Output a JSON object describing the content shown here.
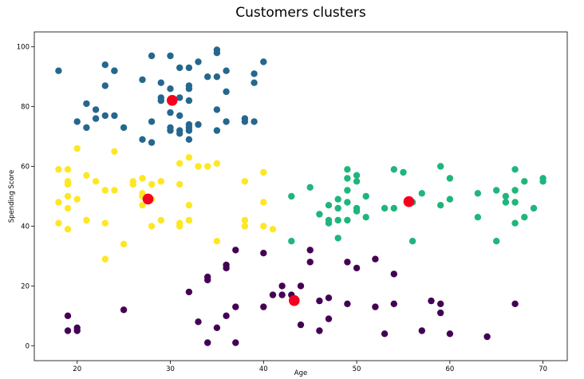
{
  "chart_data": {
    "type": "scatter",
    "title": "Customers clusters",
    "xlabel": "Age",
    "ylabel": "Spending Score",
    "xlim": [
      15.4,
      72.6
    ],
    "ylim": [
      -5,
      105
    ],
    "xticks": [
      20,
      30,
      40,
      50,
      60,
      70
    ],
    "yticks": [
      0,
      20,
      40,
      60,
      80,
      100
    ],
    "grid": false,
    "legend": "none",
    "series": [
      {
        "color": "#25678e",
        "points": [
          [
            18,
            92
          ],
          [
            23,
            94
          ],
          [
            24,
            92
          ],
          [
            28,
            97
          ],
          [
            30,
            97
          ],
          [
            35,
            99
          ],
          [
            35,
            98
          ],
          [
            33,
            95
          ],
          [
            40,
            95
          ],
          [
            36,
            92
          ],
          [
            39,
            91
          ],
          [
            31,
            93
          ],
          [
            32,
            93
          ],
          [
            34,
            90
          ],
          [
            35,
            90
          ],
          [
            27,
            89
          ],
          [
            39,
            88
          ],
          [
            23,
            87
          ],
          [
            29,
            88
          ],
          [
            30,
            86
          ],
          [
            32,
            87
          ],
          [
            32,
            86
          ],
          [
            36,
            85
          ],
          [
            24,
            92
          ],
          [
            21,
            81
          ],
          [
            22,
            79
          ],
          [
            29,
            83
          ],
          [
            29,
            82
          ],
          [
            31,
            83
          ],
          [
            32,
            82
          ],
          [
            30,
            82
          ],
          [
            35,
            79
          ],
          [
            30,
            78
          ],
          [
            23,
            77
          ],
          [
            24,
            77
          ],
          [
            31,
            77
          ],
          [
            22,
            76
          ],
          [
            38,
            76
          ],
          [
            38,
            75
          ],
          [
            20,
            75
          ],
          [
            28,
            75
          ],
          [
            36,
            75
          ],
          [
            39,
            75
          ],
          [
            21,
            73
          ],
          [
            25,
            73
          ],
          [
            30,
            73
          ],
          [
            32,
            74
          ],
          [
            33,
            74
          ],
          [
            30,
            72
          ],
          [
            31,
            72
          ],
          [
            32,
            73
          ],
          [
            35,
            72
          ],
          [
            31,
            71
          ],
          [
            32,
            72
          ],
          [
            27,
            69
          ],
          [
            28,
            68
          ],
          [
            32,
            69
          ]
        ]
      },
      {
        "color": "#fde725",
        "points": [
          [
            20,
            66
          ],
          [
            24,
            65
          ],
          [
            32,
            63
          ],
          [
            31,
            61
          ],
          [
            33,
            60
          ],
          [
            34,
            60
          ],
          [
            35,
            61
          ],
          [
            18,
            59
          ],
          [
            19,
            59
          ],
          [
            27,
            56
          ],
          [
            40,
            58
          ],
          [
            21,
            57
          ],
          [
            19,
            55
          ],
          [
            26,
            55
          ],
          [
            22,
            55
          ],
          [
            28,
            54
          ],
          [
            29,
            55
          ],
          [
            38,
            55
          ],
          [
            19,
            54
          ],
          [
            26,
            54
          ],
          [
            31,
            54
          ],
          [
            23,
            52
          ],
          [
            24,
            52
          ],
          [
            27,
            51
          ],
          [
            27,
            50
          ],
          [
            19,
            50
          ],
          [
            20,
            49
          ],
          [
            28,
            49
          ],
          [
            18,
            48
          ],
          [
            32,
            47
          ],
          [
            27,
            47
          ],
          [
            40,
            48
          ],
          [
            19,
            46
          ],
          [
            29,
            42
          ],
          [
            32,
            42
          ],
          [
            21,
            42
          ],
          [
            38,
            42
          ],
          [
            18,
            41
          ],
          [
            23,
            41
          ],
          [
            31,
            41
          ],
          [
            31,
            40
          ],
          [
            28,
            40
          ],
          [
            38,
            40
          ],
          [
            40,
            40
          ],
          [
            41,
            39
          ],
          [
            19,
            39
          ],
          [
            35,
            35
          ],
          [
            25,
            34
          ],
          [
            23,
            29
          ]
        ]
      },
      {
        "color": "#1fb67c",
        "points": [
          [
            59,
            60
          ],
          [
            54,
            59
          ],
          [
            49,
            59
          ],
          [
            55,
            58
          ],
          [
            50,
            57
          ],
          [
            67,
            59
          ],
          [
            49,
            56
          ],
          [
            50,
            55
          ],
          [
            60,
            56
          ],
          [
            70,
            56
          ],
          [
            68,
            55
          ],
          [
            70,
            55
          ],
          [
            45,
            53
          ],
          [
            49,
            52
          ],
          [
            65,
            52
          ],
          [
            67,
            52
          ],
          [
            57,
            51
          ],
          [
            43,
            50
          ],
          [
            51,
            50
          ],
          [
            63,
            51
          ],
          [
            66,
            50
          ],
          [
            60,
            49
          ],
          [
            48,
            49
          ],
          [
            49,
            48
          ],
          [
            56,
            48
          ],
          [
            66,
            48
          ],
          [
            67,
            48
          ],
          [
            59,
            47
          ],
          [
            47,
            47
          ],
          [
            48,
            46
          ],
          [
            50,
            46
          ],
          [
            50,
            45
          ],
          [
            53,
            46
          ],
          [
            54,
            46
          ],
          [
            69,
            46
          ],
          [
            46,
            44
          ],
          [
            51,
            43
          ],
          [
            63,
            43
          ],
          [
            68,
            43
          ],
          [
            47,
            42
          ],
          [
            48,
            42
          ],
          [
            49,
            42
          ],
          [
            47,
            41
          ],
          [
            67,
            41
          ],
          [
            48,
            36
          ],
          [
            43,
            35
          ],
          [
            56,
            35
          ],
          [
            65,
            35
          ]
        ]
      },
      {
        "color": "#440154",
        "points": [
          [
            37,
            32
          ],
          [
            40,
            31
          ],
          [
            45,
            32
          ],
          [
            52,
            29
          ],
          [
            45,
            28
          ],
          [
            49,
            28
          ],
          [
            36,
            27
          ],
          [
            50,
            26
          ],
          [
            36,
            26
          ],
          [
            54,
            24
          ],
          [
            34,
            23
          ],
          [
            34,
            22
          ],
          [
            42,
            20
          ],
          [
            44,
            20
          ],
          [
            32,
            18
          ],
          [
            42,
            17
          ],
          [
            41,
            17
          ],
          [
            43,
            17
          ],
          [
            47,
            16
          ],
          [
            46,
            15
          ],
          [
            58,
            15
          ],
          [
            59,
            14
          ],
          [
            49,
            14
          ],
          [
            54,
            14
          ],
          [
            67,
            14
          ],
          [
            37,
            13
          ],
          [
            40,
            13
          ],
          [
            52,
            13
          ],
          [
            25,
            12
          ],
          [
            59,
            11
          ],
          [
            36,
            10
          ],
          [
            19,
            10
          ],
          [
            47,
            9
          ],
          [
            33,
            8
          ],
          [
            44,
            7
          ],
          [
            35,
            6
          ],
          [
            20,
            6
          ],
          [
            20,
            5
          ],
          [
            19,
            5
          ],
          [
            46,
            5
          ],
          [
            57,
            5
          ],
          [
            53,
            4
          ],
          [
            60,
            4
          ],
          [
            64,
            3
          ],
          [
            34,
            1
          ],
          [
            37,
            1
          ]
        ]
      }
    ],
    "centroids": {
      "color": "#f5001e",
      "points": [
        [
          30.2,
          82.1
        ],
        [
          27.6,
          49.1
        ],
        [
          55.6,
          48.2
        ],
        [
          43.3,
          15.1
        ]
      ]
    }
  }
}
